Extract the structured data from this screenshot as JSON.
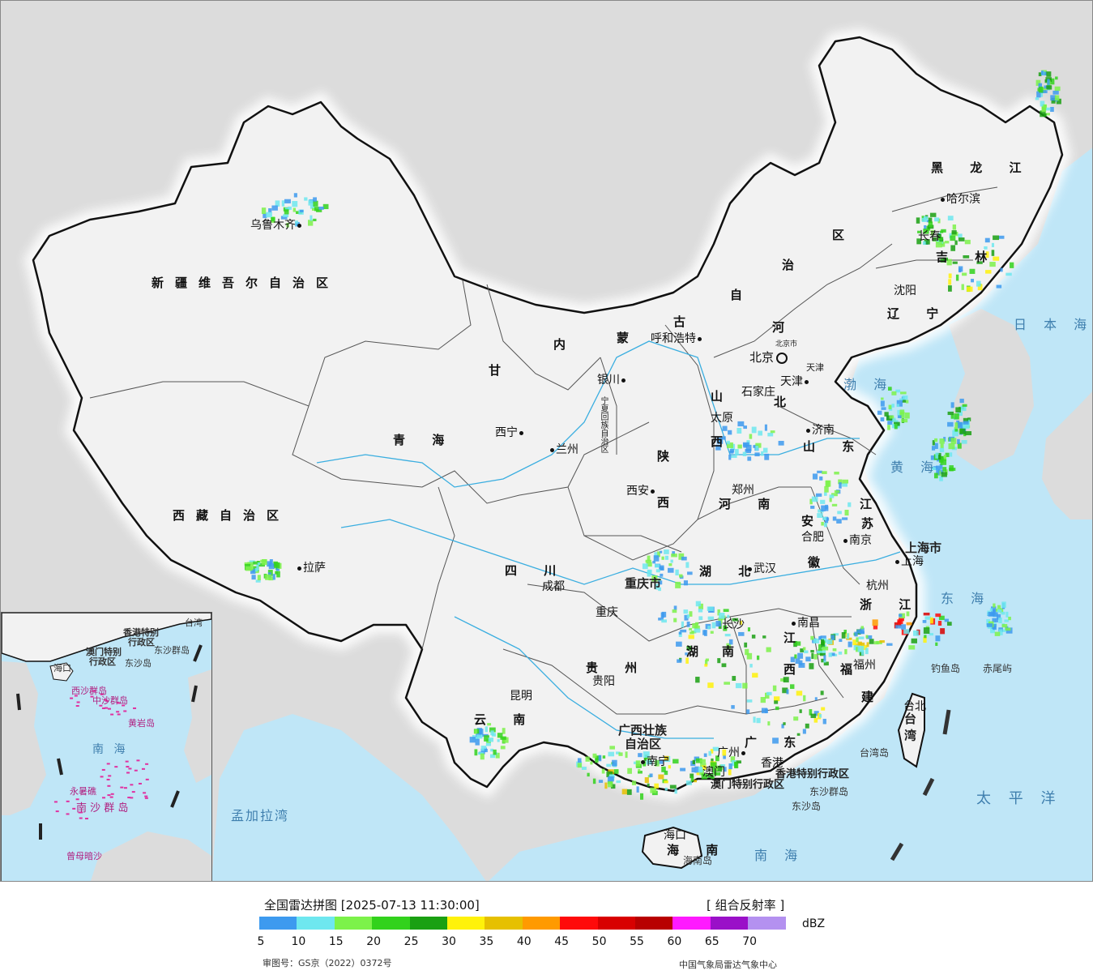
{
  "map": {
    "colors": {
      "ocean": "#bfe6f7",
      "land": "#f2f2f2",
      "foreign": "#dcdcdc",
      "border": "#111111",
      "river": "#3aaee0"
    },
    "provinces": [
      {
        "id": "xinjiang",
        "text": "新疆维吾尔自治区"
      },
      {
        "id": "xizang",
        "text": "西藏自治区"
      },
      {
        "id": "qinghai",
        "text": "青  海"
      },
      {
        "id": "gansu",
        "text": "甘"
      },
      {
        "id": "sichuan",
        "text": "四  川"
      },
      {
        "id": "yunnan",
        "text": "云  南"
      },
      {
        "id": "guizhou",
        "text": "贵  州"
      },
      {
        "id": "shaanxi",
        "text": "陕"
      },
      {
        "id": "shaanxi2",
        "text": "西"
      },
      {
        "id": "henan",
        "text": "河  南"
      },
      {
        "id": "hubei",
        "text": "湖  北"
      },
      {
        "id": "hunan",
        "text": "湖"
      },
      {
        "id": "hunan2",
        "text": "南"
      },
      {
        "id": "jiangxi",
        "text": "江"
      },
      {
        "id": "jiangxi2",
        "text": "西"
      },
      {
        "id": "fujian",
        "text": "福"
      },
      {
        "id": "fujian2",
        "text": "建"
      },
      {
        "id": "zhejiang",
        "text": "浙 江"
      },
      {
        "id": "anhui",
        "text": "安"
      },
      {
        "id": "anhui2",
        "text": "徽"
      },
      {
        "id": "jiangsu",
        "text": "江"
      },
      {
        "id": "jiangsu2",
        "text": "苏"
      },
      {
        "id": "shandong",
        "text": "山 东"
      },
      {
        "id": "shanxi",
        "text": "山"
      },
      {
        "id": "shanxi2",
        "text": "西"
      },
      {
        "id": "hebei",
        "text": "河"
      },
      {
        "id": "hebei2",
        "text": "北"
      },
      {
        "id": "neimenggu1",
        "text": "内"
      },
      {
        "id": "neimenggu2",
        "text": "蒙"
      },
      {
        "id": "neimenggu3",
        "text": "古"
      },
      {
        "id": "neimenggu4",
        "text": "自"
      },
      {
        "id": "neimenggu5",
        "text": "治"
      },
      {
        "id": "neimenggu6",
        "text": "区"
      },
      {
        "id": "heilongjiang",
        "text": "黑 龙 江"
      },
      {
        "id": "jilin",
        "text": "吉 林"
      },
      {
        "id": "liaoning",
        "text": "辽 宁"
      },
      {
        "id": "chongqing",
        "text": "重庆市"
      },
      {
        "id": "guangxi",
        "text": "广西壮族"
      },
      {
        "id": "guangxi2",
        "text": "自治区"
      },
      {
        "id": "guangdong",
        "text": "广  东"
      },
      {
        "id": "hainan",
        "text": "海  南"
      },
      {
        "id": "ningxia",
        "text": "宁夏回族自治区"
      },
      {
        "id": "shanghai",
        "text": "上海市"
      },
      {
        "id": "hongkong",
        "text": "香港特别行政区"
      },
      {
        "id": "macau",
        "text": "澳门特别行政区"
      },
      {
        "id": "taiwan",
        "text": "台 湾"
      },
      {
        "id": "tianjin",
        "text": "天津"
      }
    ],
    "cities": [
      {
        "id": "urumqi",
        "text": "乌鲁木齐"
      },
      {
        "id": "lhasa",
        "text": "拉萨"
      },
      {
        "id": "xining",
        "text": "西宁"
      },
      {
        "id": "lanzhou",
        "text": "兰州"
      },
      {
        "id": "yinchuan",
        "text": "银川"
      },
      {
        "id": "hohhot",
        "text": "呼和浩特"
      },
      {
        "id": "beijing",
        "text": "北京"
      },
      {
        "id": "beijing_small",
        "text": "北京市"
      },
      {
        "id": "tianjin",
        "text": "天津"
      },
      {
        "id": "shijiazhuang",
        "text": "石家庄"
      },
      {
        "id": "taiyuan",
        "text": "太原"
      },
      {
        "id": "jinan",
        "text": "济南"
      },
      {
        "id": "zhengzhou",
        "text": "郑州"
      },
      {
        "id": "xian",
        "text": "西安"
      },
      {
        "id": "chengdu",
        "text": "成都"
      },
      {
        "id": "chongqing",
        "text": "重庆"
      },
      {
        "id": "wuhan",
        "text": "武汉"
      },
      {
        "id": "hefei",
        "text": "合肥"
      },
      {
        "id": "nanjing",
        "text": "南京"
      },
      {
        "id": "shanghai",
        "text": "上海"
      },
      {
        "id": "hangzhou",
        "text": "杭州"
      },
      {
        "id": "nanchang",
        "text": "南昌"
      },
      {
        "id": "changsha",
        "text": "长沙"
      },
      {
        "id": "guiyang",
        "text": "贵阳"
      },
      {
        "id": "kunming",
        "text": "昆明"
      },
      {
        "id": "nanning",
        "text": "南宁"
      },
      {
        "id": "guangzhou",
        "text": "广州"
      },
      {
        "id": "macau",
        "text": "澳门"
      },
      {
        "id": "hongkong",
        "text": "香港"
      },
      {
        "id": "fuzhou",
        "text": "福州"
      },
      {
        "id": "taipei",
        "text": "台北"
      },
      {
        "id": "haikou",
        "text": "海口"
      },
      {
        "id": "harbin",
        "text": "哈尔滨"
      },
      {
        "id": "changchun",
        "text": "长春"
      },
      {
        "id": "shenyang",
        "text": "沈阳"
      }
    ],
    "seas": [
      {
        "id": "bohai",
        "text": "渤 海"
      },
      {
        "id": "huanghai",
        "text": "黄 海"
      },
      {
        "id": "donghai",
        "text": "东 海"
      },
      {
        "id": "nanhai",
        "text": "南  海"
      },
      {
        "id": "taipingyang",
        "text": "太 平 洋"
      },
      {
        "id": "ribenhai",
        "text": "日 本 海"
      },
      {
        "id": "mengjiala",
        "text": "孟加拉湾"
      }
    ],
    "islands": [
      {
        "id": "diaoyu",
        "text": "钓鱼岛"
      },
      {
        "id": "chiwei",
        "text": "赤尾屿"
      },
      {
        "id": "dongsha",
        "text": "东沙群岛"
      },
      {
        "id": "dongsha2",
        "text": "东沙岛"
      },
      {
        "id": "taiwandao",
        "text": "台湾岛"
      },
      {
        "id": "hainandao",
        "text": "海南岛"
      }
    ],
    "inset": {
      "labels": [
        {
          "id": "taiwan",
          "text": "台湾"
        },
        {
          "id": "hk",
          "text": "香港特别"
        },
        {
          "id": "hk2",
          "text": "行政区"
        },
        {
          "id": "mo",
          "text": "澳门特别"
        },
        {
          "id": "mo2",
          "text": "行政区"
        },
        {
          "id": "dongsha",
          "text": "东沙群岛"
        },
        {
          "id": "dongshadao",
          "text": "东沙岛"
        },
        {
          "id": "haikou",
          "text": "海口"
        },
        {
          "id": "xisha",
          "text": "西沙群岛"
        },
        {
          "id": "zhongsha",
          "text": "中沙群岛"
        },
        {
          "id": "huangyan",
          "text": "黄岩岛"
        },
        {
          "id": "nanhai",
          "text": "南  海"
        },
        {
          "id": "nansha",
          "text": "南 沙 群 岛"
        },
        {
          "id": "yongshu",
          "text": "永暑礁"
        },
        {
          "id": "zengmu",
          "text": "曾母暗沙"
        }
      ]
    }
  },
  "legend": {
    "title": "全国雷达拼图 [2025-07-13 11:30:00]",
    "product": "[ 组合反射率 ]",
    "unit": "dBZ",
    "colors": [
      "#3d9aef",
      "#6ee7ef",
      "#7cf24a",
      "#32d21c",
      "#1aa012",
      "#fff20a",
      "#e6c000",
      "#ff9a00",
      "#ff0a0a",
      "#d80000",
      "#b80000",
      "#ff1aff",
      "#9a10c8",
      "#b491f0"
    ],
    "ticks": [
      "5",
      "10",
      "15",
      "20",
      "25",
      "30",
      "35",
      "40",
      "45",
      "50",
      "55",
      "60",
      "65",
      "70"
    ],
    "review_no": "审图号：GS京（2022）0372号",
    "agency": "中国气象局雷达气象中心"
  }
}
